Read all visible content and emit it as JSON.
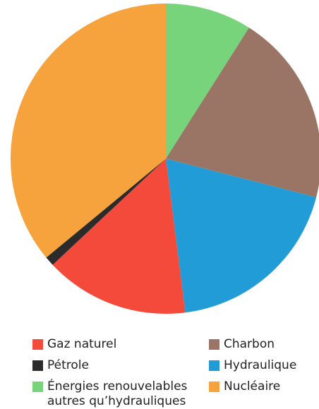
{
  "chart_data": {
    "type": "pie",
    "series": [
      {
        "name": "Énergies renouvelables autres qu’hydrauliques",
        "color": "#77d47a",
        "value": 9
      },
      {
        "name": "Charbon",
        "color": "#9a7565",
        "value": 20
      },
      {
        "name": "Hydraulique",
        "color": "#229cd6",
        "value": 19
      },
      {
        "name": "Gaz naturel",
        "color": "#f44a3c",
        "value": 15
      },
      {
        "name": "Pétrole",
        "color": "#2b2b2b",
        "value": 1
      },
      {
        "name": "Nucléaire",
        "color": "#f6a33d",
        "value": 36
      }
    ]
  }
}
